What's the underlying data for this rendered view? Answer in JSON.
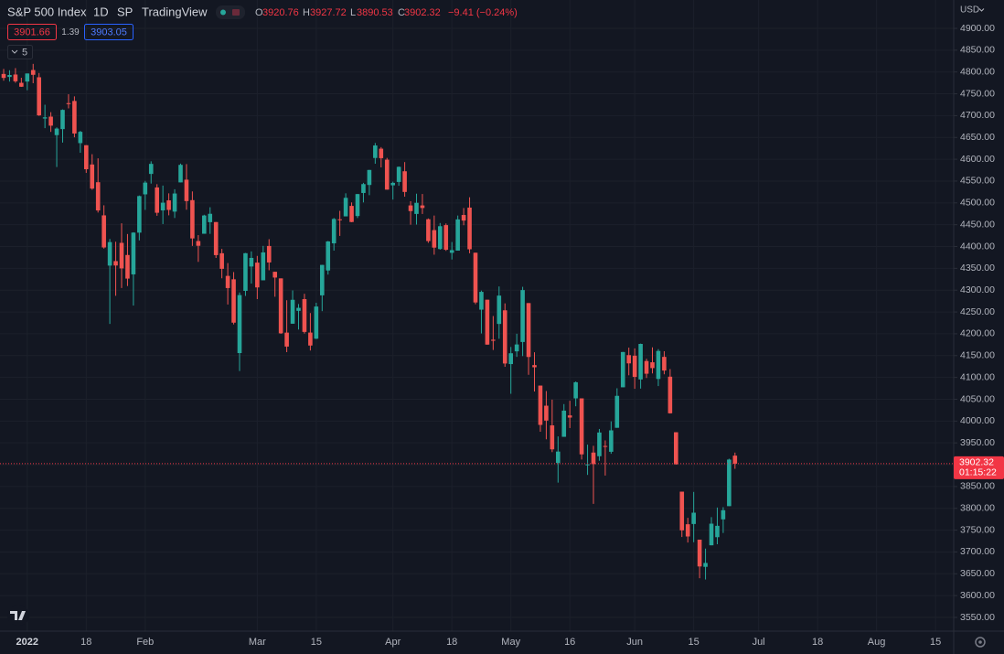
{
  "chart_data": {
    "type": "candlestick",
    "legend": {
      "symbol": "S&P 500 Index",
      "interval": "1D",
      "exchange": "SP",
      "source": "TradingView",
      "open_label": "O",
      "open": "3920.76",
      "high_label": "H",
      "high": "3927.72",
      "low_label": "L",
      "low": "3890.53",
      "close_label": "C",
      "close": "3902.32",
      "change": "−9.41 (−0.24%)"
    },
    "bid": "3901.66",
    "spread": "1.39",
    "ask": "3903.05",
    "indicators_collapsed": "5",
    "currency": "USD",
    "countdown": "01:15:22",
    "last_price": 3902.32,
    "up_color": "#26a69a",
    "down_color": "#ef5350",
    "categories": [
      null,
      null,
      null,
      null,
      "2022",
      null,
      null,
      null,
      null,
      null,
      null,
      null,
      null,
      null,
      "18",
      null,
      null,
      null,
      null,
      null,
      null,
      null,
      null,
      null,
      "Feb",
      null,
      null,
      null,
      null,
      null,
      null,
      null,
      null,
      null,
      null,
      null,
      null,
      null,
      null,
      null,
      null,
      null,
      null,
      "Mar",
      null,
      null,
      null,
      null,
      null,
      null,
      null,
      null,
      null,
      "15",
      null,
      null,
      null,
      null,
      null,
      null,
      null,
      null,
      null,
      null,
      null,
      null,
      "Apr",
      null,
      null,
      null,
      null,
      null,
      null,
      null,
      null,
      null,
      "18",
      null,
      null,
      null,
      null,
      null,
      null,
      null,
      null,
      null,
      "May",
      null,
      null,
      null,
      null,
      null,
      null,
      null,
      null,
      null,
      "16",
      null,
      null,
      null,
      null,
      null,
      null,
      null,
      null,
      null,
      null,
      "Jun",
      null,
      null,
      null,
      null,
      null,
      null,
      null,
      null,
      null,
      "15",
      null,
      null,
      null,
      null,
      null,
      null,
      null,
      null,
      null,
      null,
      "Jul",
      null,
      null,
      null,
      null,
      null,
      null,
      null,
      null,
      null,
      "18",
      null,
      null,
      null,
      null,
      null,
      null,
      null,
      null,
      null,
      "Aug",
      null,
      null,
      null,
      null,
      null,
      null,
      null,
      null,
      null,
      "15"
    ],
    "open": [
      4795.5,
      4788.6,
      4794.2,
      4775.2,
      4778.1,
      4804.5,
      4787.9,
      4693.4,
      4697.7,
      4655.3,
      4669.1,
      4728.6,
      4733.6,
      4637.0,
      4632.2,
      4588.0,
      4547.4,
      4471.4,
      4356.3,
      4366.6,
      4408.4,
      4380.6,
      4336.2,
      4431.8,
      4519.6,
      4566.4,
      4535.4,
      4482.8,
      4505.8,
      4480.0,
      4547.0,
      4553.2,
      4506.3,
      4412.6,
      4429.3,
      4455.8,
      4456.1,
      4384.6,
      4332.7,
      4324.9,
      4155.8,
      4298.4,
      4354.2,
      4363.1,
      4322.6,
      4401.3,
      4342.1,
      4327.0,
      4202.7,
      4223.1,
      4252.6,
      4279.5,
      4202.8,
      4188.8,
      4288.1,
      4345.1,
      4407.3,
      4462.4,
      4469.1,
      4493.1,
      4469.9,
      4522.7,
      4541.1,
      4602.9,
      4624.2,
      4599.0,
      4540.3,
      4548.0,
      4572.5,
      4494.2,
      4474.7,
      4494.2,
      4462.6,
      4437.6,
      4394.3,
      4449.1,
      4385.6,
      4390.6,
      4472.3,
      4489.2,
      4385.8,
      4255.3,
      4278.1,
      4186.5,
      4222.6,
      4253.8,
      4130.6,
      4159.8,
      4181.2,
      4270.4,
      4128.2,
      4081.3,
      4035.2,
      3990.1,
      3903.9,
      3963.9,
      4013.0,
      4052.0,
      4052.0,
      3899.0,
      3927.8,
      3919.4,
      3942.9,
      3929.6,
      3984.6,
      4077.4,
      4151.1,
      4149.8,
      4095.4,
      4137.6,
      4134.7,
      4096.5,
      4147.1,
      4101.7,
      3974.4,
      3838.2,
      3763.5,
      3764.1,
      3728.2,
      3665.9,
      3715.3,
      3733.9,
      3774.7,
      3805.0,
      3920.76,
      null,
      null,
      null,
      null,
      null,
      null,
      null,
      null,
      null,
      null,
      null,
      null,
      null,
      null,
      null,
      null,
      null,
      null,
      null,
      null,
      null,
      null,
      null,
      null,
      null,
      null,
      null,
      null,
      null,
      null,
      null,
      null,
      null,
      null
    ],
    "high": [
      4807,
      4804,
      4808.9,
      4786.8,
      4796.6,
      4818.6,
      4797.7,
      4725.0,
      4707.9,
      4673.0,
      4714.1,
      4749.0,
      4744.1,
      4665.1,
      4632.2,
      4611.6,
      4602.1,
      4494.5,
      4417.4,
      4411.0,
      4453.2,
      4428.7,
      4432.7,
      4516.9,
      4550.5,
      4595.3,
      4542.9,
      4539.7,
      4521.9,
      4531.3,
      4590.0,
      4588.9,
      4526.3,
      4426.2,
      4472.8,
      4490.0,
      4456.1,
      4394.6,
      4362.1,
      4341.5,
      4294.7,
      4385.3,
      4388.8,
      4378.5,
      4401.5,
      4416.8,
      4342.1,
      4327.0,
      4276.9,
      4299.4,
      4268.3,
      4291.7,
      4247.6,
      4271.1,
      4358.0,
      4412.7,
      4465.4,
      4481.8,
      4522.0,
      4501.1,
      4520.6,
      4546.0,
      4575.6,
      4637.3,
      4627.8,
      4603.1,
      4548.7,
      4583.5,
      4593.5,
      4503.9,
      4521.2,
      4520.4,
      4464.4,
      4471.0,
      4453.9,
      4452.8,
      4410.3,
      4471.0,
      4488.3,
      4512.9,
      4385.8,
      4299.0,
      4278.1,
      4240.7,
      4308.5,
      4269.7,
      4169.8,
      4200.1,
      4307.7,
      4270.4,
      4157.7,
      4081.3,
      4068.8,
      4049.1,
      3964.8,
      4038.9,
      4046.5,
      4090.7,
      4052.0,
      3946.0,
      3943.4,
      3981.9,
      3955.7,
      3999.3,
      4075.1,
      4158.5,
      4168.3,
      4166.5,
      4177.5,
      4142.7,
      4168.8,
      4164.9,
      4160.1,
      4119.1,
      3974.4,
      3838.2,
      3778.2,
      3837.6,
      3728.2,
      3707.7,
      3779.7,
      3801.8,
      3802.6,
      3913.7,
      3927.72,
      null,
      null,
      null,
      null,
      null,
      null,
      null,
      null,
      null,
      null,
      null,
      null,
      null,
      null,
      null,
      null,
      null,
      null,
      null,
      null,
      null,
      null,
      null,
      null,
      null,
      null,
      null,
      null,
      null,
      null,
      null,
      null,
      null,
      null
    ],
    "low": [
      4780,
      4778,
      4775.3,
      4765.8,
      4758.2,
      4774.3,
      4699.4,
      4671.3,
      4662.7,
      4582.2,
      4638.3,
      4716.6,
      4650.3,
      4614.8,
      4568.7,
      4530.2,
      4477.9,
      4395.3,
      4222.6,
      4287.1,
      4304.8,
      4309.5,
      4264.7,
      4414.0,
      4484.0,
      4544.3,
      4470.4,
      4451.5,
      4471.5,
      4465.4,
      4547.0,
      4484.3,
      4401.4,
      4364.8,
      4429.3,
      4429.0,
      4373.8,
      4327.2,
      4267.1,
      4221.5,
      4114.7,
      4286.8,
      4315.1,
      4279.5,
      4322.6,
      4345.6,
      4284.9,
      4199.9,
      4157.9,
      4223.1,
      4209.8,
      4200.5,
      4161.7,
      4187.9,
      4251.9,
      4335.7,
      4390.6,
      4424.3,
      4469.1,
      4455.8,
      4465.2,
      4501.1,
      4517.7,
      4589.7,
      4581.3,
      4530.4,
      4507.6,
      4539.2,
      4514.2,
      4450.0,
      4450.3,
      4474.6,
      4408.4,
      4381.3,
      4392.7,
      4390.0,
      4370.3,
      4390.6,
      4448.8,
      4384.5,
      4267.6,
      4200.8,
      4175.0,
      4162.9,
      4188.6,
      4124.3,
      4062.5,
      4147.1,
      4148.9,
      4106.0,
      4067.9,
      3975.5,
      3958.2,
      3928.8,
      3858.9,
      3963.9,
      3984.0,
      4033.9,
      3911.9,
      3876.6,
      3810.3,
      3909.0,
      3875.1,
      3925.0,
      3984.6,
      4077.4,
      4104.9,
      4073.9,
      4074.4,
      4098.7,
      4109.2,
      4080.2,
      4107.2,
      4017.2,
      3900.2,
      3734.3,
      3721.6,
      3722.3,
      3639.8,
      3636.9,
      3715.3,
      3717.7,
      3743.5,
      3805.0,
      3890.53,
      null,
      null,
      null,
      null,
      null,
      null,
      null,
      null,
      null,
      null,
      null,
      null,
      null,
      null,
      null,
      null,
      null,
      null,
      null,
      null,
      null,
      null,
      null,
      null,
      null,
      null,
      null,
      null,
      null,
      null,
      null,
      null,
      null,
      null
    ],
    "close": [
      4786.4,
      4793.1,
      4778.7,
      4766.2,
      4796.6,
      4793.5,
      4700.6,
      4696.1,
      4677.0,
      4670.3,
      4713.1,
      4726.4,
      4659.0,
      4662.9,
      4577.1,
      4532.8,
      4482.7,
      4397.9,
      4410.1,
      4356.5,
      4349.9,
      4326.5,
      4431.9,
      4515.6,
      4546.5,
      4589.4,
      4477.4,
      4500.5,
      4483.9,
      4521.5,
      4587.2,
      4504.1,
      4418.6,
      4401.7,
      4471.1,
      4475.0,
      4380.3,
      4348.9,
      4304.8,
      4225.5,
      4288.7,
      4384.7,
      4373.9,
      4306.3,
      4386.5,
      4363.5,
      4328.9,
      4201.1,
      4170.7,
      4277.9,
      4259.5,
      4204.3,
      4173.1,
      4262.5,
      4357.9,
      4411.7,
      4463.1,
      4461.2,
      4511.6,
      4456.2,
      4520.2,
      4543.1,
      4575.5,
      4631.6,
      4602.5,
      4530.4,
      4545.9,
      4582.6,
      4525.1,
      4481.2,
      4500.2,
      4488.3,
      4412.5,
      4397.5,
      4446.6,
      4392.6,
      4391.7,
      4462.2,
      4459.5,
      4393.7,
      4271.8,
      4296.1,
      4175.2,
      4184.0,
      4287.5,
      4131.9,
      4155.4,
      4175.5,
      4300.2,
      4146.9,
      4123.3,
      3991.2,
      4001.1,
      3935.2,
      3930.1,
      4023.9,
      4008.0,
      4088.9,
      3923.7,
      3900.8,
      3901.4,
      3973.8,
      3941.5,
      3978.7,
      4057.8,
      4158.2,
      4132.2,
      4101.2,
      4176.8,
      4108.5,
      4121.4,
      4160.7,
      4115.8,
      4017.8,
      3900.9,
      3749.6,
      3735.5,
      3790.0,
      3666.8,
      3674.8,
      3764.8,
      3759.9,
      3795.7,
      3911.7,
      3902.32,
      null,
      null,
      null,
      null,
      null,
      null,
      null,
      null,
      null,
      null,
      null,
      null,
      null,
      null,
      null,
      null,
      null,
      null,
      null,
      null,
      null,
      null,
      null,
      null,
      null,
      null,
      null,
      null,
      null,
      null,
      null,
      null,
      null,
      null
    ],
    "ylim": [
      3550,
      4900
    ],
    "yticks": [
      {
        "value": 3550,
        "label": "3550.00"
      },
      {
        "value": 3600,
        "label": "3600.00"
      },
      {
        "value": 3650,
        "label": "3650.00"
      },
      {
        "value": 3700,
        "label": "3700.00"
      },
      {
        "value": 3750,
        "label": "3750.00"
      },
      {
        "value": 3800,
        "label": "3800.00"
      },
      {
        "value": 3850,
        "label": "3850.00"
      },
      {
        "value": 3900,
        "label": "3900.00"
      },
      {
        "value": 3950,
        "label": "3950.00"
      },
      {
        "value": 4000,
        "label": "4000.00"
      },
      {
        "value": 4050,
        "label": "4050.00"
      },
      {
        "value": 4100,
        "label": "4100.00"
      },
      {
        "value": 4150,
        "label": "4150.00"
      },
      {
        "value": 4200,
        "label": "4200.00"
      },
      {
        "value": 4250,
        "label": "4250.00"
      },
      {
        "value": 4300,
        "label": "4300.00"
      },
      {
        "value": 4350,
        "label": "4350.00"
      },
      {
        "value": 4400,
        "label": "4400.00"
      },
      {
        "value": 4450,
        "label": "4450.00"
      },
      {
        "value": 4500,
        "label": "4500.00"
      },
      {
        "value": 4550,
        "label": "4550.00"
      },
      {
        "value": 4600,
        "label": "4600.00"
      },
      {
        "value": 4650,
        "label": "4650.00"
      },
      {
        "value": 4700,
        "label": "4700.00"
      },
      {
        "value": 4750,
        "label": "4750.00"
      },
      {
        "value": 4800,
        "label": "4800.00"
      },
      {
        "value": 4850,
        "label": "4850.00"
      },
      {
        "value": 4900,
        "label": "4900.00"
      }
    ],
    "grid": true
  }
}
